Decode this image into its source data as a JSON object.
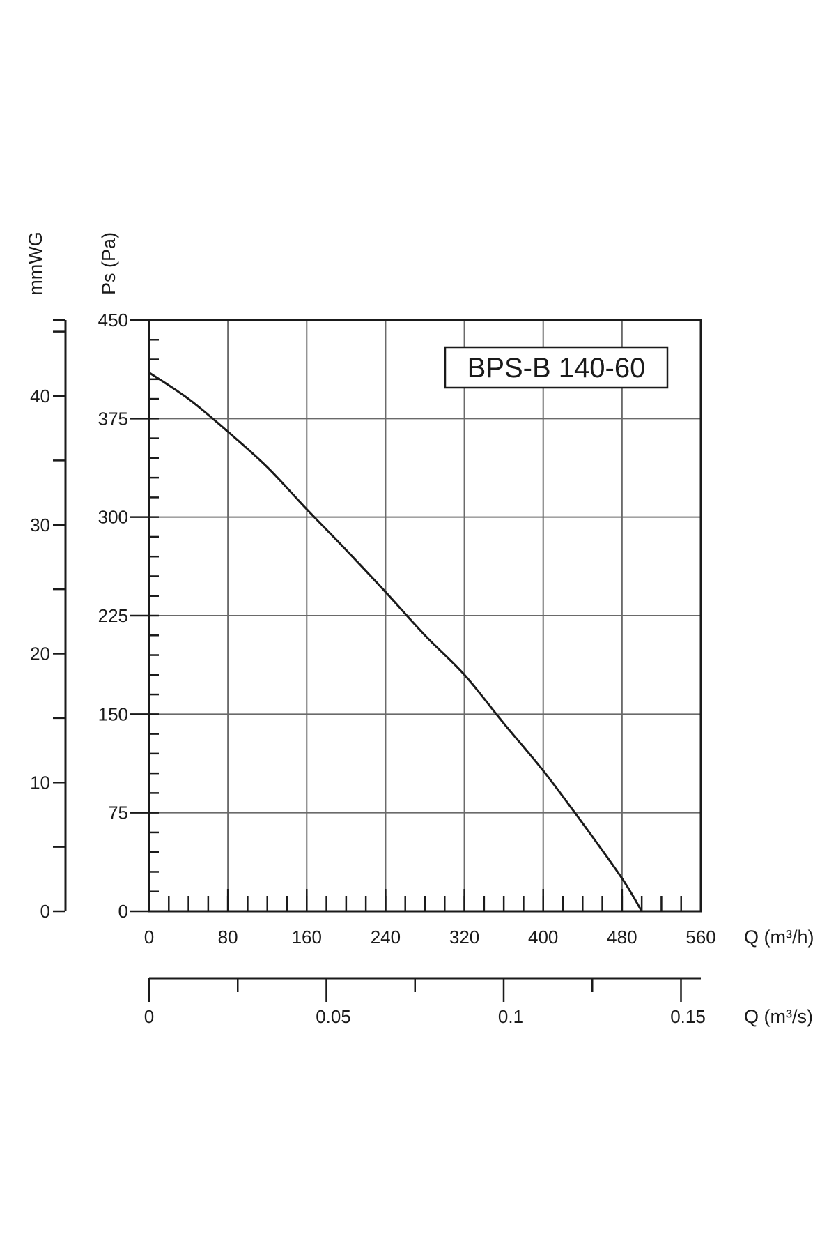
{
  "chart_data": {
    "type": "line",
    "model_label": "BPS-B 140-60",
    "y_primary": {
      "label": "Ps (Pa)",
      "range": [
        0,
        450
      ],
      "ticks": [
        0,
        75,
        150,
        225,
        300,
        375,
        450
      ],
      "tick_labels": [
        "0",
        "75",
        "150",
        "225",
        "300",
        "375",
        "450"
      ],
      "minor_step": 15
    },
    "y_secondary": {
      "label": "mmWG",
      "range": [
        0,
        45.9
      ],
      "ticks": [
        0,
        10,
        20,
        30,
        40
      ],
      "tick_labels": [
        "0",
        "10",
        "20",
        "30",
        "40"
      ],
      "minor_step": 5
    },
    "x_primary": {
      "label": "Q (m³/h)",
      "range": [
        0,
        560
      ],
      "ticks": [
        0,
        80,
        160,
        240,
        320,
        400,
        480,
        560
      ],
      "tick_labels": [
        "0",
        "80",
        "160",
        "240",
        "320",
        "400",
        "480",
        "560"
      ],
      "minor_step": 20
    },
    "x_secondary": {
      "label": "Q (m³/s)",
      "range": [
        0,
        0.1556
      ],
      "ticks": [
        0,
        0.05,
        0.1,
        0.15
      ],
      "tick_labels": [
        "0",
        "0.05",
        "0.1",
        "0.15"
      ],
      "minor_step": 0.025
    },
    "grid": true,
    "series": [
      {
        "x": [
          0,
          40,
          80,
          120,
          160,
          200,
          240,
          280,
          320,
          360,
          400,
          440,
          480,
          500
        ],
        "y": [
          410,
          390,
          365,
          338,
          306,
          275,
          243,
          210,
          180,
          143,
          107,
          67,
          25,
          0
        ]
      }
    ]
  }
}
